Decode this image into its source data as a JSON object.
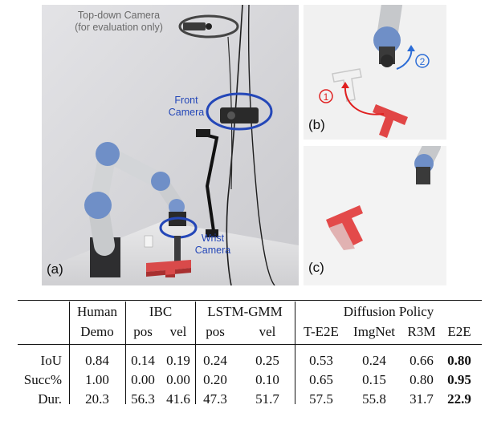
{
  "figure": {
    "panel_a": {
      "label": "(a)",
      "annotations": {
        "top_camera_line1": "Top-down Camera",
        "top_camera_line2": "(for evaluation only)",
        "front_camera_line1": "Front",
        "front_camera_line2": "Camera",
        "wrist_camera_line1": "Wrist",
        "wrist_camera_line2": "Camera"
      }
    },
    "panel_b": {
      "label": "(b)",
      "step1": "1",
      "step2": "2"
    },
    "panel_c": {
      "label": "(c)"
    }
  },
  "table": {
    "header1": {
      "human": "Human",
      "ibc": "IBC",
      "lstm": "LSTM-GMM",
      "diffusion": "Diffusion Policy"
    },
    "header2": {
      "demo": "Demo",
      "ibc_pos": "pos",
      "ibc_vel": "vel",
      "lstm_pos": "pos",
      "lstm_vel": "vel",
      "t_e2e": "T-E2E",
      "imgnet": "ImgNet",
      "r3m": "R3M",
      "e2e": "E2E"
    },
    "rows": [
      {
        "metric": "IoU",
        "values": [
          "0.84",
          "0.14",
          "0.19",
          "0.24",
          "0.25",
          "0.53",
          "0.24",
          "0.66",
          "0.80"
        ]
      },
      {
        "metric": "Succ%",
        "values": [
          "1.00",
          "0.00",
          "0.00",
          "0.20",
          "0.10",
          "0.65",
          "0.15",
          "0.80",
          "0.95"
        ]
      },
      {
        "metric": "Dur.",
        "values": [
          "20.3",
          "56.3",
          "41.6",
          "47.3",
          "51.7",
          "57.5",
          "55.8",
          "31.7",
          "22.9"
        ]
      }
    ]
  }
}
